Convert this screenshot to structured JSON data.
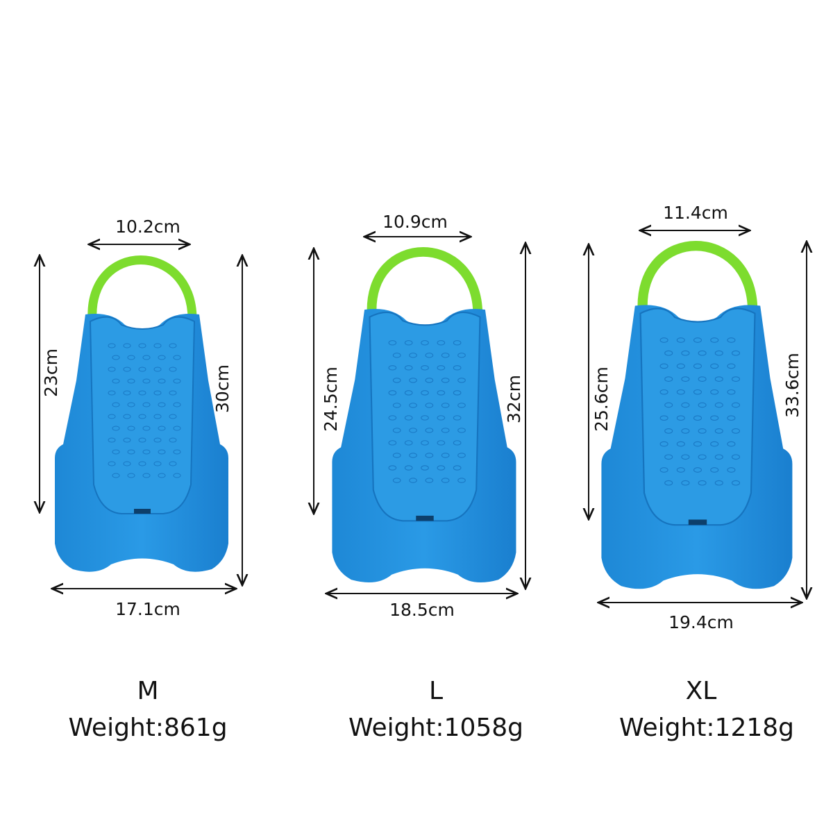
{
  "sizes": [
    {
      "top_width": "10.2cm",
      "foot_height": "23cm",
      "total_height": "30cm",
      "bottom_width": "17.1cm",
      "size": "M",
      "weight": "Weight:861g"
    },
    {
      "top_width": "10.9cm",
      "foot_height": "24.5cm",
      "total_height": "32cm",
      "bottom_width": "18.5cm",
      "size": "L",
      "weight": "Weight:1058g"
    },
    {
      "top_width": "11.4cm",
      "foot_height": "25.6cm",
      "total_height": "33.6cm",
      "bottom_width": "19.4cm",
      "size": "XL",
      "weight": "Weight:1218g"
    }
  ]
}
